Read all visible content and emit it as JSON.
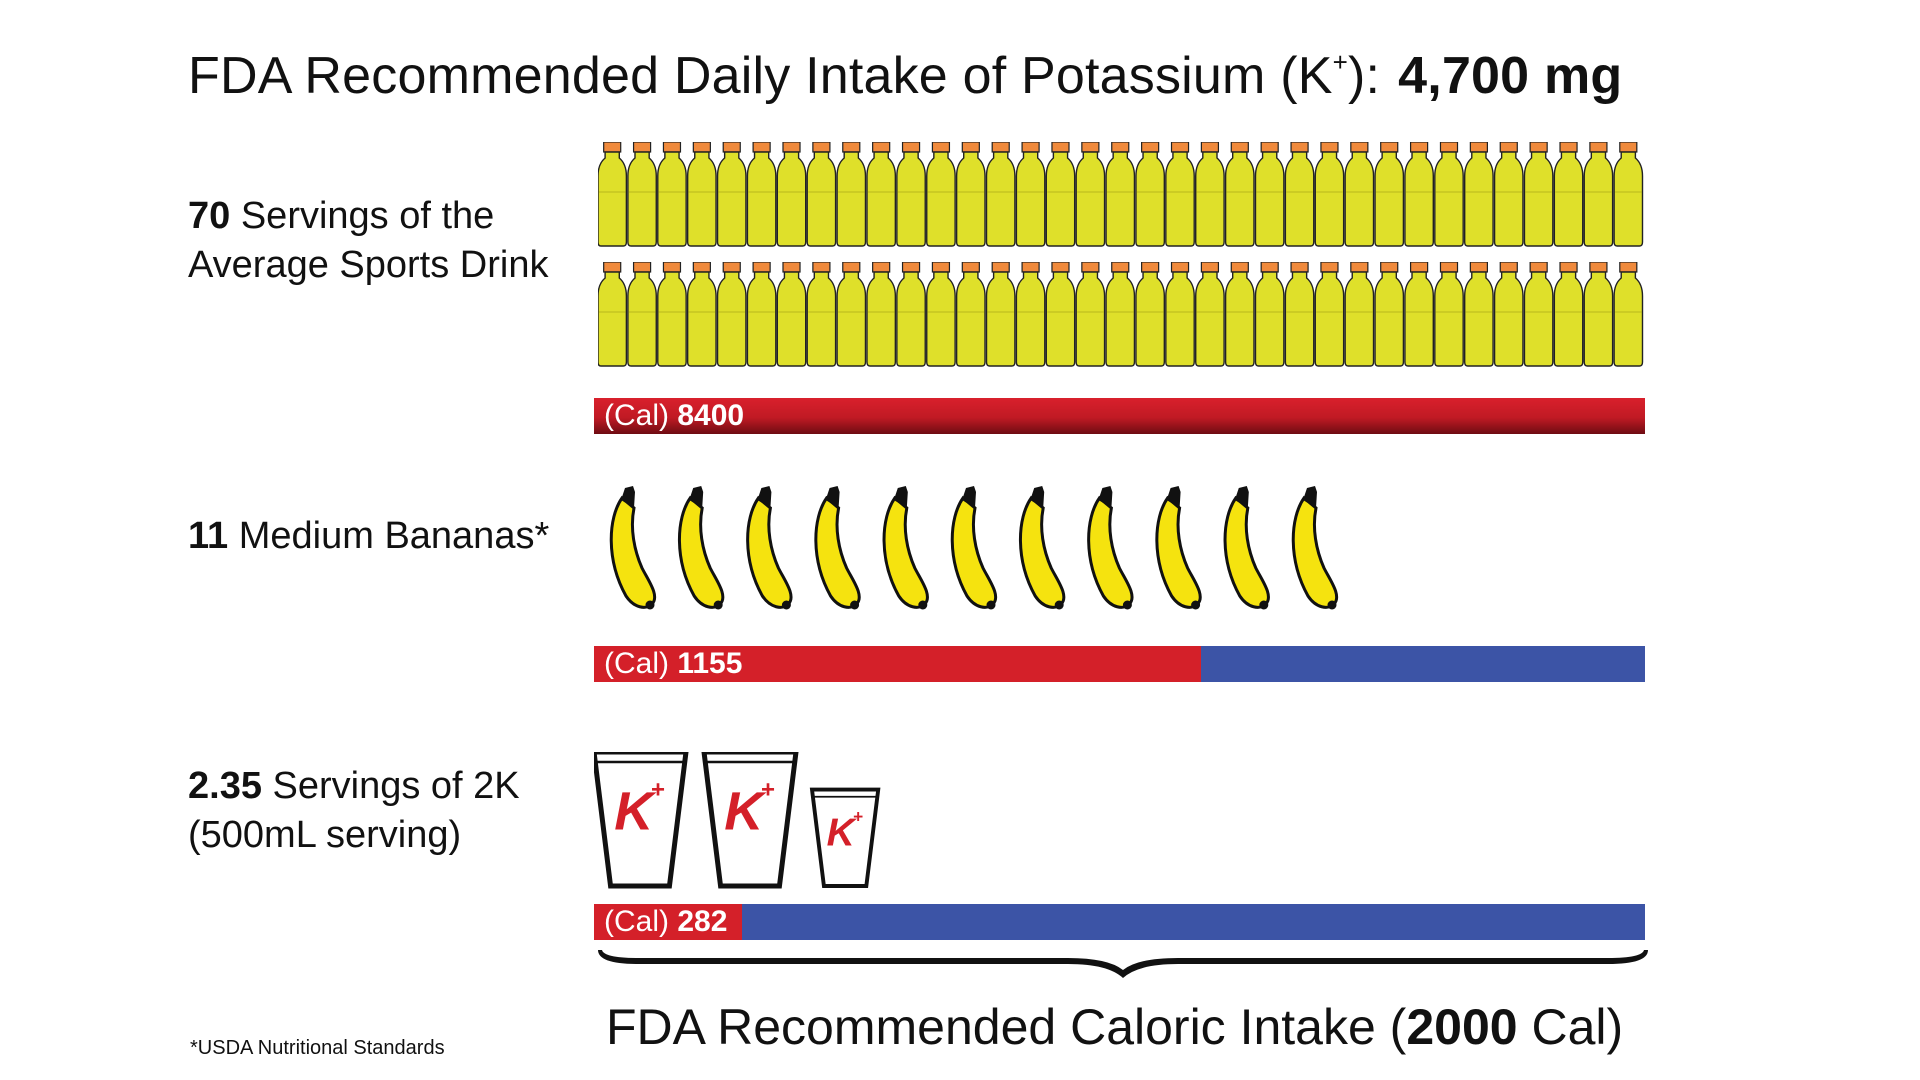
{
  "header": {
    "title_text": "FDA Recommended Daily Intake of Potassium (K",
    "title_sup": "+",
    "title_close": "):",
    "title_amount": "4,700 mg"
  },
  "rows": {
    "drinks": {
      "count": "70",
      "line1_rest": " Servings of the",
      "line2": "Average Sports Drink",
      "bar_prefix": "(Cal) ",
      "bar_value": "8400",
      "icon": "sports-drink-bottle-icon"
    },
    "bananas": {
      "count": "11",
      "line1_rest": " Medium Bananas*",
      "bar_prefix": "(Cal) ",
      "bar_value": "1155",
      "icon": "banana-icon"
    },
    "twok": {
      "count": "2.35",
      "line1_rest": " Servings of 2K",
      "line2": "(500mL serving)",
      "bar_prefix": "(Cal) ",
      "bar_value": "282",
      "icon": "2k-cup-icon",
      "cup_glyph": "K",
      "cup_sup": "+"
    }
  },
  "bottom": {
    "prefix": "FDA Recommended Caloric Intake (",
    "value": "2000",
    "suffix": " Cal)"
  },
  "footnote": "*USDA Nutritional Standards",
  "colors": {
    "bottle_body": "#dfe02a",
    "bottle_cap": "#f08a3c",
    "banana": "#f5e30f",
    "bar_red": "#d42029",
    "bar_blue": "#3c54a6"
  },
  "chart_data": {
    "type": "bar",
    "orientation": "horizontal",
    "categories": [
      "Average Sports Drink",
      "Medium Bananas",
      "2K"
    ],
    "servings": [
      70,
      11,
      2.35
    ],
    "values": [
      8400,
      1155,
      282
    ],
    "reference_value": 2000,
    "icon_counts": {
      "drink_bottles": 70,
      "drink_rows": 2,
      "bananas": 11,
      "cups_full": 2,
      "cups_partial_fraction": 0.35
    }
  }
}
